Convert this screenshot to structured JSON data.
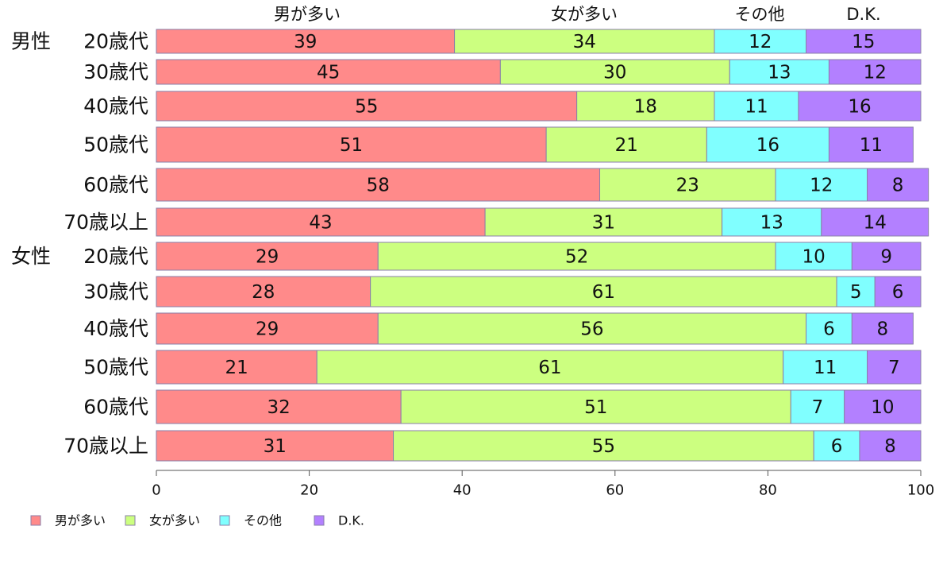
{
  "chart_data": {
    "type": "bar",
    "orientation": "horizontal",
    "stacked": true,
    "xlim": [
      0,
      100
    ],
    "x_ticks": [
      "0",
      "20",
      "40",
      "60",
      "80",
      "100"
    ],
    "group_labels": [
      "男性",
      "女性"
    ],
    "categories": [
      "20歳代",
      "30歳代",
      "40歳代",
      "50歳代",
      "60歳代",
      "70歳以上",
      "20歳代",
      "30歳代",
      "40歳代",
      "50歳代",
      "60歳代",
      "70歳以上"
    ],
    "category_groups": [
      0,
      -1,
      -1,
      -1,
      -1,
      -1,
      1,
      -1,
      -1,
      -1,
      -1,
      -1
    ],
    "series": [
      {
        "name": "男が多い",
        "color": "#ff8a8a",
        "values": [
          39,
          45,
          55,
          51,
          58,
          43,
          29,
          28,
          29,
          21,
          32,
          31
        ]
      },
      {
        "name": "女が多い",
        "color": "#ccff80",
        "values": [
          34,
          30,
          18,
          21,
          23,
          31,
          52,
          61,
          56,
          61,
          51,
          55
        ]
      },
      {
        "name": "その他",
        "color": "#80ffff",
        "values": [
          12,
          13,
          11,
          16,
          12,
          13,
          10,
          5,
          6,
          11,
          7,
          6
        ]
      },
      {
        "name": "D.K.",
        "color": "#b380ff",
        "values": [
          15,
          12,
          16,
          11,
          8,
          14,
          9,
          6,
          8,
          7,
          10,
          8
        ]
      }
    ],
    "top_labels": [
      "男が多い",
      "女が多い",
      "その他",
      "D.K."
    ],
    "legend": {
      "position": "bottom-left"
    },
    "grid": false
  }
}
